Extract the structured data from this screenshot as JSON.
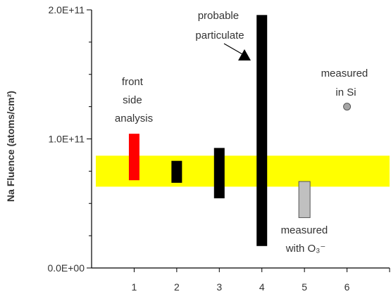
{
  "chart_data": {
    "type": "bar",
    "ylabel": "Na Fluence (atoms/cm²)",
    "ylim": [
      0,
      200000000000
    ],
    "xlim": [
      0,
      7
    ],
    "x_ticks": [
      "1",
      "2",
      "3",
      "4",
      "5",
      "6"
    ],
    "x_tick_values": [
      1,
      2,
      3,
      4,
      5,
      6
    ],
    "y_ticks": [
      "0.0E+00",
      "1.0E+11",
      "2.0E+11"
    ],
    "y_tick_values": [
      0,
      100000000000,
      200000000000
    ],
    "grid": false,
    "band": {
      "low": 63000000000,
      "high": 87000000000,
      "color": "#ffff00"
    },
    "ranges": [
      {
        "x": 1,
        "low": 68000000000,
        "high": 104000000000,
        "color": "#ff0000"
      },
      {
        "x": 2,
        "low": 66000000000,
        "high": 83000000000,
        "color": "#000000"
      },
      {
        "x": 3,
        "low": 54000000000,
        "high": 93000000000,
        "color": "#000000"
      },
      {
        "x": 4,
        "low": 17000000000,
        "high": 196000000000,
        "color": "#000000"
      },
      {
        "x": 5,
        "low": 39000000000,
        "high": 67000000000,
        "color": "#c0c0c0"
      }
    ],
    "point": {
      "x": 6,
      "y": 125000000000,
      "color": "#a6a6a6"
    },
    "annotations": [
      {
        "lines": [
          "front",
          "side",
          "analysis"
        ]
      },
      {
        "lines": [
          "probable",
          "particulate"
        ]
      },
      {
        "lines": [
          "measured",
          "in Si"
        ]
      },
      {
        "lines": [
          "measured",
          "with O₃⁻"
        ]
      }
    ]
  }
}
